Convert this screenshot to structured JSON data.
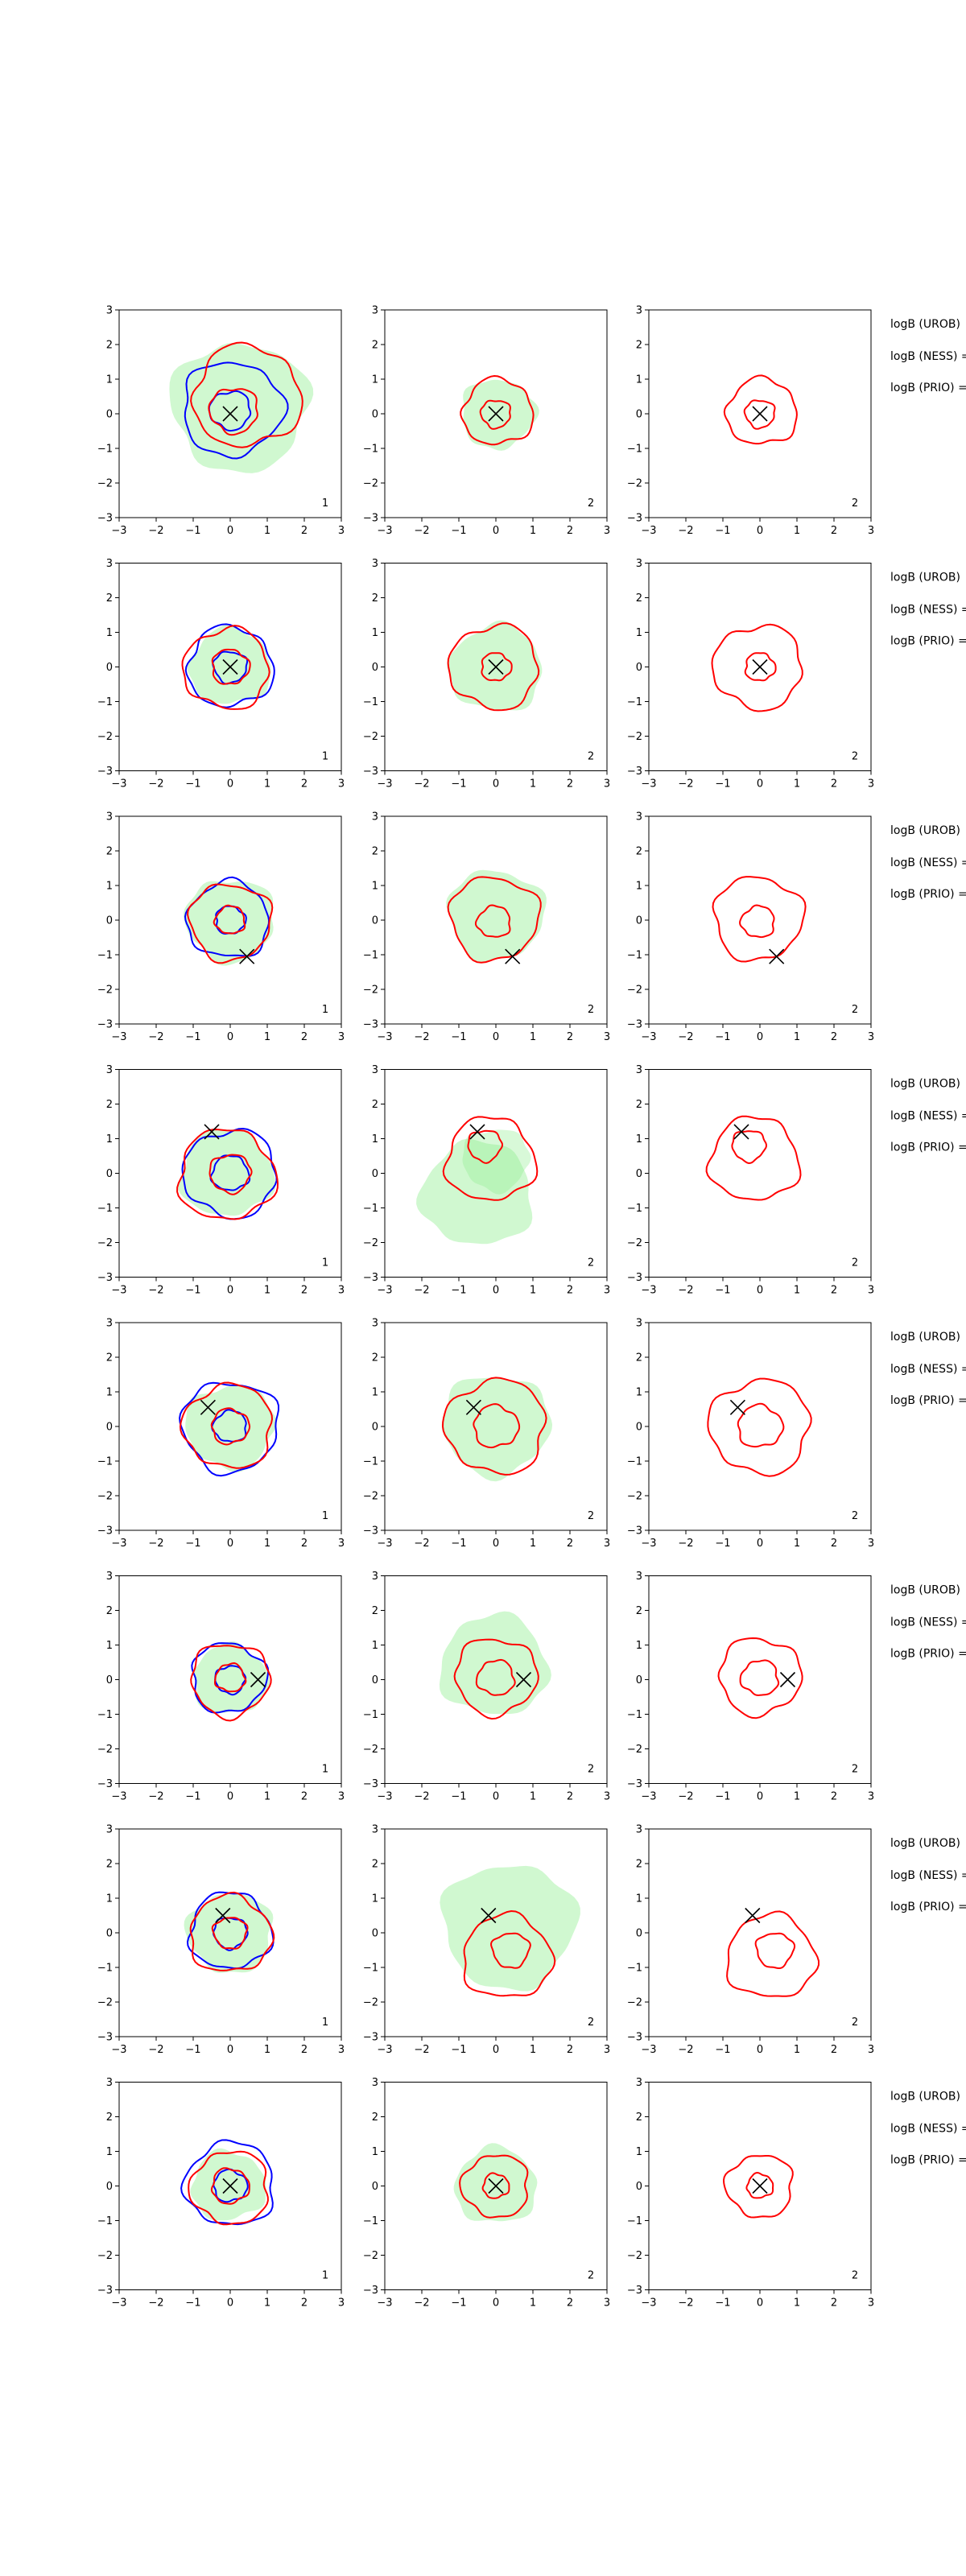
{
  "chart_data": {
    "type": "contour",
    "layout": {
      "rows": 8,
      "cols": 3
    },
    "axes": {
      "xlim": [
        -3,
        3
      ],
      "ylim": [
        -3,
        3
      ],
      "xticks": [
        -3,
        -2,
        -1,
        0,
        1,
        2,
        3
      ],
      "yticks": [
        -3,
        -2,
        -1,
        0,
        1,
        2,
        3
      ],
      "xtick_labels": [
        "−3",
        "−2",
        "−1",
        "0",
        "1",
        "2",
        "3"
      ],
      "ytick_labels": [
        "−3",
        "−2",
        "−1",
        "0",
        "1",
        "2",
        "3"
      ],
      "grid": false
    },
    "colors": {
      "red": "#ff0000",
      "blue": "#0000ff",
      "green_fill": "#90ee90",
      "marker": "#000000"
    },
    "panel_corner_labels": [
      "1",
      "2",
      "2"
    ],
    "row_annotations": [
      "logB (UROB)",
      "logB (NESS) =",
      "logB (PRIO) ="
    ],
    "rows": [
      {
        "marker": [
          0.0,
          0.0
        ],
        "panels": [
          {
            "green": [
              {
                "cx": 0.25,
                "cy": 0.2,
                "r": 1.85
              }
            ],
            "blue": [
              {
                "cx": 0.05,
                "cy": 0.15,
                "r": 1.35
              },
              {
                "cx": 0.0,
                "cy": 0.1,
                "r": 0.55
              }
            ],
            "red": [
              {
                "cx": 0.45,
                "cy": 0.5,
                "r": 1.45
              },
              {
                "cx": 0.1,
                "cy": 0.1,
                "r": 0.65
              }
            ]
          },
          {
            "green": [
              {
                "cx": 0.05,
                "cy": 0.0,
                "r": 1.0
              }
            ],
            "blue": [],
            "red": [
              {
                "cx": 0.05,
                "cy": 0.05,
                "r": 0.95
              },
              {
                "cx": 0.0,
                "cy": 0.0,
                "r": 0.4
              }
            ]
          },
          {
            "green": [],
            "blue": [],
            "red": [
              {
                "cx": 0.05,
                "cy": 0.05,
                "r": 0.95
              },
              {
                "cx": 0.0,
                "cy": 0.0,
                "r": 0.4
              }
            ]
          }
        ]
      },
      {
        "marker": [
          0.0,
          0.0
        ],
        "panels": [
          {
            "green": [
              {
                "cx": 0.0,
                "cy": 0.0,
                "r": 1.1
              }
            ],
            "blue": [
              {
                "cx": 0.0,
                "cy": 0.0,
                "r": 1.15
              },
              {
                "cx": 0.0,
                "cy": 0.0,
                "r": 0.45
              }
            ],
            "red": [
              {
                "cx": -0.1,
                "cy": -0.05,
                "r": 1.15
              },
              {
                "cx": 0.0,
                "cy": 0.0,
                "r": 0.5
              }
            ]
          },
          {
            "green": [
              {
                "cx": 0.0,
                "cy": -0.05,
                "r": 1.25
              }
            ],
            "blue": [],
            "red": [
              {
                "cx": -0.05,
                "cy": 0.0,
                "r": 1.2
              },
              {
                "cx": 0.0,
                "cy": 0.0,
                "r": 0.4
              }
            ]
          },
          {
            "green": [],
            "blue": [],
            "red": [
              {
                "cx": -0.05,
                "cy": 0.0,
                "r": 1.2
              },
              {
                "cx": 0.0,
                "cy": 0.0,
                "r": 0.4
              }
            ]
          }
        ]
      },
      {
        "marker": [
          0.45,
          -1.05
        ],
        "panels": [
          {
            "green": [
              {
                "cx": 0.0,
                "cy": 0.0,
                "r": 1.2
              }
            ],
            "blue": [
              {
                "cx": -0.05,
                "cy": 0.0,
                "r": 1.1
              },
              {
                "cx": 0.0,
                "cy": 0.0,
                "r": 0.4
              }
            ],
            "red": [
              {
                "cx": 0.0,
                "cy": -0.05,
                "r": 1.1
              },
              {
                "cx": 0.0,
                "cy": 0.0,
                "r": 0.4
              }
            ]
          },
          {
            "green": [
              {
                "cx": 0.0,
                "cy": 0.15,
                "r": 1.3
              }
            ],
            "blue": [],
            "red": [
              {
                "cx": -0.05,
                "cy": 0.05,
                "r": 1.2
              },
              {
                "cx": -0.05,
                "cy": -0.05,
                "r": 0.45
              }
            ]
          },
          {
            "green": [],
            "blue": [],
            "red": [
              {
                "cx": -0.05,
                "cy": 0.05,
                "r": 1.2
              },
              {
                "cx": -0.05,
                "cy": -0.05,
                "r": 0.45
              }
            ]
          }
        ]
      },
      {
        "marker": [
          -0.5,
          1.2
        ],
        "panels": [
          {
            "green": [
              {
                "cx": -0.1,
                "cy": 0.0,
                "r": 1.25
              }
            ],
            "blue": [
              {
                "cx": 0.0,
                "cy": 0.0,
                "r": 1.25
              },
              {
                "cx": 0.0,
                "cy": 0.0,
                "r": 0.5
              }
            ],
            "red": [
              {
                "cx": -0.1,
                "cy": -0.05,
                "r": 1.3
              },
              {
                "cx": 0.0,
                "cy": 0.0,
                "r": 0.55
              }
            ]
          },
          {
            "green": [
              {
                "cx": -0.5,
                "cy": -0.6,
                "r": 1.5
              },
              {
                "cx": 0.0,
                "cy": 0.4,
                "r": 0.9
              }
            ],
            "blue": [],
            "red": [
              {
                "cx": -0.15,
                "cy": 0.4,
                "r": 1.2
              },
              {
                "cx": -0.3,
                "cy": 0.8,
                "r": 0.45
              }
            ]
          },
          {
            "green": [],
            "blue": [],
            "red": [
              {
                "cx": -0.15,
                "cy": 0.4,
                "r": 1.2
              },
              {
                "cx": -0.3,
                "cy": 0.8,
                "r": 0.45
              }
            ]
          }
        ]
      },
      {
        "marker": [
          -0.6,
          0.55
        ],
        "panels": [
          {
            "green": [
              {
                "cx": 0.0,
                "cy": 0.0,
                "r": 1.2
              }
            ],
            "blue": [
              {
                "cx": 0.0,
                "cy": 0.0,
                "r": 1.3
              },
              {
                "cx": 0.0,
                "cy": 0.0,
                "r": 0.45
              }
            ],
            "red": [
              {
                "cx": -0.05,
                "cy": 0.0,
                "r": 1.2
              },
              {
                "cx": 0.0,
                "cy": 0.0,
                "r": 0.5
              }
            ]
          },
          {
            "green": [
              {
                "cx": 0.0,
                "cy": 0.05,
                "r": 1.45
              }
            ],
            "blue": [],
            "red": [
              {
                "cx": 0.0,
                "cy": 0.0,
                "r": 1.35
              },
              {
                "cx": 0.0,
                "cy": 0.0,
                "r": 0.6
              }
            ]
          },
          {
            "green": [],
            "blue": [],
            "red": [
              {
                "cx": 0.0,
                "cy": 0.0,
                "r": 1.35
              },
              {
                "cx": 0.0,
                "cy": 0.0,
                "r": 0.6
              }
            ]
          }
        ]
      },
      {
        "marker": [
          0.75,
          0.0
        ],
        "panels": [
          {
            "green": [
              {
                "cx": 0.0,
                "cy": 0.0,
                "r": 1.0
              }
            ],
            "blue": [
              {
                "cx": -0.05,
                "cy": 0.05,
                "r": 1.0
              },
              {
                "cx": 0.0,
                "cy": 0.0,
                "r": 0.4
              }
            ],
            "red": [
              {
                "cx": 0.0,
                "cy": 0.0,
                "r": 1.05
              },
              {
                "cx": 0.0,
                "cy": 0.05,
                "r": 0.4
              }
            ]
          },
          {
            "green": [
              {
                "cx": -0.05,
                "cy": 0.4,
                "r": 1.45
              }
            ],
            "blue": [],
            "red": [
              {
                "cx": 0.0,
                "cy": 0.1,
                "r": 1.1
              },
              {
                "cx": 0.0,
                "cy": 0.05,
                "r": 0.5
              }
            ]
          },
          {
            "green": [],
            "blue": [],
            "red": [
              {
                "cx": 0.0,
                "cy": 0.1,
                "r": 1.1
              },
              {
                "cx": 0.0,
                "cy": 0.05,
                "r": 0.5
              }
            ]
          }
        ]
      },
      {
        "marker": [
          -0.2,
          0.5
        ],
        "panels": [
          {
            "green": [
              {
                "cx": 0.0,
                "cy": 0.0,
                "r": 1.15
              }
            ],
            "blue": [
              {
                "cx": 0.0,
                "cy": 0.05,
                "r": 1.1
              },
              {
                "cx": 0.0,
                "cy": 0.0,
                "r": 0.45
              }
            ],
            "red": [
              {
                "cx": 0.0,
                "cy": -0.05,
                "r": 1.1
              },
              {
                "cx": 0.0,
                "cy": 0.0,
                "r": 0.45
              }
            ]
          },
          {
            "green": [
              {
                "cx": 0.35,
                "cy": 0.2,
                "r": 1.8
              }
            ],
            "blue": [],
            "red": [
              {
                "cx": 0.3,
                "cy": -0.7,
                "r": 1.2
              },
              {
                "cx": 0.4,
                "cy": -0.5,
                "r": 0.5
              }
            ]
          },
          {
            "green": [],
            "blue": [],
            "red": [
              {
                "cx": 0.3,
                "cy": -0.7,
                "r": 1.2
              },
              {
                "cx": 0.4,
                "cy": -0.5,
                "r": 0.5
              }
            ]
          }
        ]
      },
      {
        "marker": [
          0.0,
          0.0
        ],
        "panels": [
          {
            "green": [
              {
                "cx": -0.05,
                "cy": 0.0,
                "r": 1.0
              }
            ],
            "blue": [
              {
                "cx": 0.0,
                "cy": 0.05,
                "r": 1.2
              },
              {
                "cx": 0.0,
                "cy": 0.0,
                "r": 0.45
              }
            ],
            "red": [
              {
                "cx": 0.0,
                "cy": -0.05,
                "r": 1.05
              },
              {
                "cx": 0.0,
                "cy": 0.0,
                "r": 0.5
              }
            ]
          },
          {
            "green": [
              {
                "cx": 0.0,
                "cy": 0.0,
                "r": 1.1
              }
            ],
            "blue": [],
            "red": [
              {
                "cx": 0.0,
                "cy": 0.0,
                "r": 0.9
              },
              {
                "cx": 0.0,
                "cy": 0.0,
                "r": 0.35
              }
            ]
          },
          {
            "green": [],
            "blue": [],
            "red": [
              {
                "cx": 0.0,
                "cy": 0.0,
                "r": 0.9
              },
              {
                "cx": 0.0,
                "cy": 0.0,
                "r": 0.35
              }
            ]
          }
        ]
      }
    ]
  }
}
